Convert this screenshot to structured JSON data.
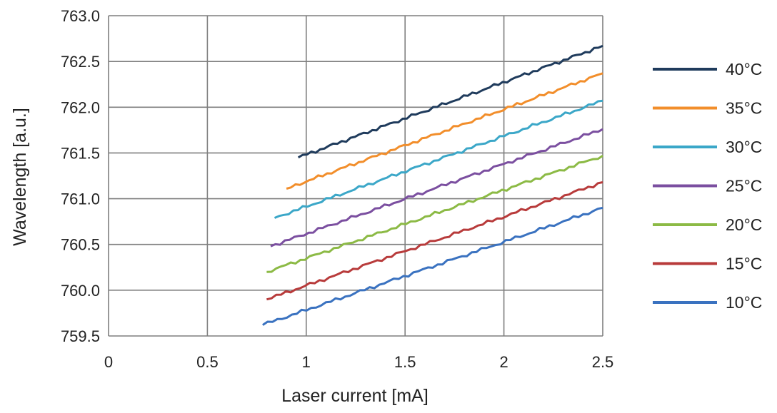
{
  "chart_data": {
    "type": "line",
    "xlabel": "Laser current [mA]",
    "ylabel": "Wavelength [a.u.]",
    "xlim": [
      0,
      2.5
    ],
    "ylim": [
      759.5,
      763.0
    ],
    "x_ticks": [
      "0",
      "0.5",
      "1",
      "1.5",
      "2",
      "2.5"
    ],
    "y_ticks": [
      "759.5",
      "760.0",
      "760.5",
      "761.0",
      "761.5",
      "762.0",
      "762.5",
      "763.0"
    ],
    "grid": true,
    "legend_position": "right",
    "series": [
      {
        "name": "40°C",
        "color": "#1f3b5c",
        "x": [
          0.96,
          2.5
        ],
        "y": [
          761.45,
          762.67
        ]
      },
      {
        "name": "35°C",
        "color": "#f28e2b",
        "x": [
          0.9,
          2.5
        ],
        "y": [
          761.11,
          762.37
        ]
      },
      {
        "name": "30°C",
        "color": "#3ba7c8",
        "x": [
          0.84,
          2.5
        ],
        "y": [
          760.79,
          762.07
        ]
      },
      {
        "name": "25°C",
        "color": "#7b4fa0",
        "x": [
          0.82,
          2.5
        ],
        "y": [
          760.48,
          761.76
        ]
      },
      {
        "name": "20°C",
        "color": "#8cba45",
        "x": [
          0.8,
          2.5
        ],
        "y": [
          760.2,
          761.47
        ]
      },
      {
        "name": "15°C",
        "color": "#b83b3b",
        "x": [
          0.8,
          2.5
        ],
        "y": [
          759.9,
          761.18
        ]
      },
      {
        "name": "10°C",
        "color": "#3a72c0",
        "x": [
          0.78,
          2.5
        ],
        "y": [
          759.62,
          760.9
        ]
      }
    ]
  }
}
